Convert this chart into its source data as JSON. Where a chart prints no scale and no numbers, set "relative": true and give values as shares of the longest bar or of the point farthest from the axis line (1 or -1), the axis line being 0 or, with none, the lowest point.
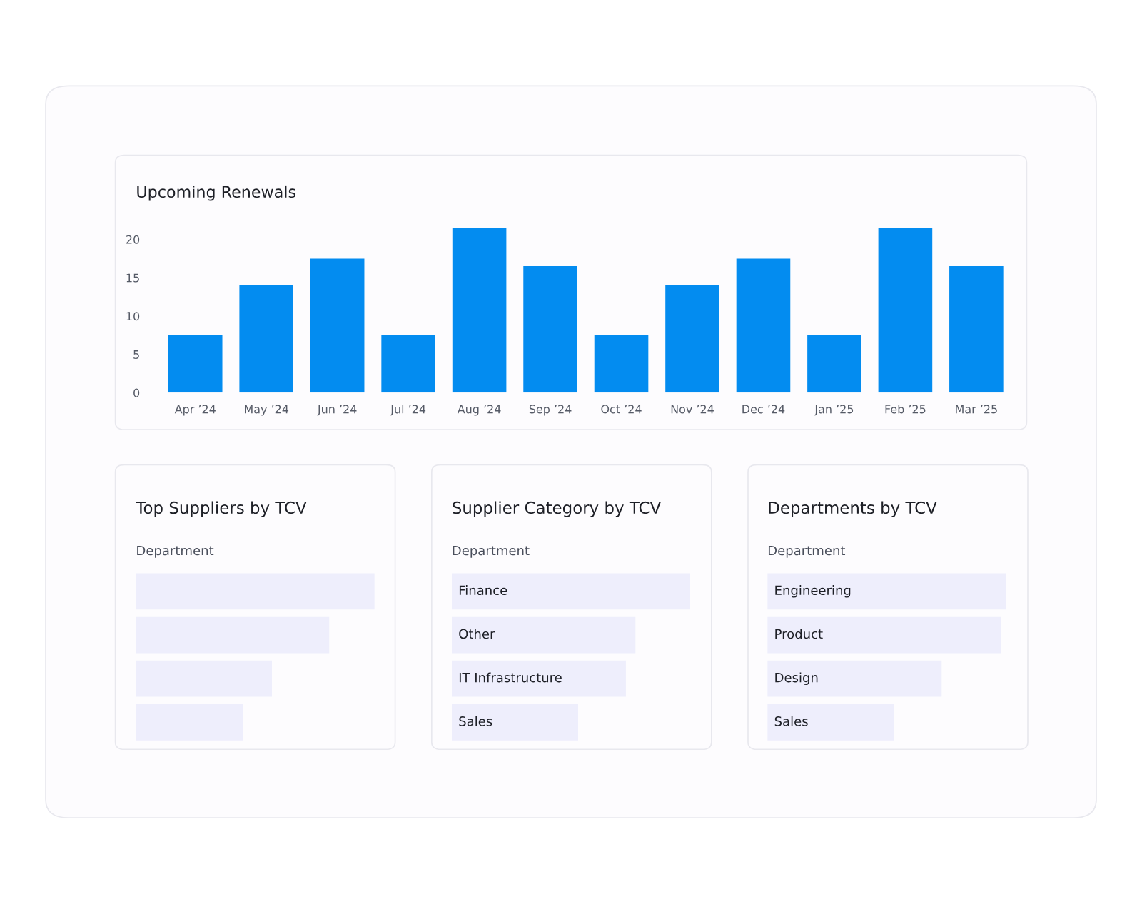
{
  "chart_data": [
    {
      "type": "bar",
      "title": "Upcoming Renewals",
      "categories": [
        "Apr ’24",
        "May ’24",
        "Jun ’24",
        "Jul ’24",
        "Aug ’24",
        "Sep ’24",
        "Oct ’24",
        "Nov ’24",
        "Dec ’24",
        "Jan ’25",
        "Feb ’25",
        "Mar ’25"
      ],
      "values": [
        7.5,
        14,
        17.5,
        7.5,
        21.5,
        16.5,
        7.5,
        14,
        17.5,
        7.5,
        21.5,
        16.5
      ],
      "color": "#038cf0",
      "ylim": [
        0,
        22
      ],
      "yticks": [
        0,
        5,
        10,
        15,
        20
      ],
      "grid": false
    },
    {
      "type": "bar",
      "orientation": "horizontal",
      "relative": true,
      "title": "Top Suppliers by TCV",
      "subtitle": "Department",
      "categories": [
        null,
        null,
        null,
        null
      ],
      "values": [
        1,
        0.81,
        0.57,
        0.45
      ],
      "color": "#eeeefc"
    },
    {
      "type": "bar",
      "orientation": "horizontal",
      "relative": true,
      "title": "Supplier Category by TCV",
      "subtitle": "Department",
      "categories": [
        "Finance",
        "Other",
        "IT Infrastructure",
        "Sales"
      ],
      "values": [
        1,
        0.77,
        0.73,
        0.53
      ],
      "color": "#eeeefc"
    },
    {
      "type": "bar",
      "orientation": "horizontal",
      "relative": true,
      "title": "Departments by TCV",
      "subtitle": "Department",
      "categories": [
        "Engineering",
        "Product",
        "Design",
        "Sales"
      ],
      "values": [
        1,
        0.98,
        0.73,
        0.53
      ],
      "color": "#eeeefc"
    }
  ]
}
